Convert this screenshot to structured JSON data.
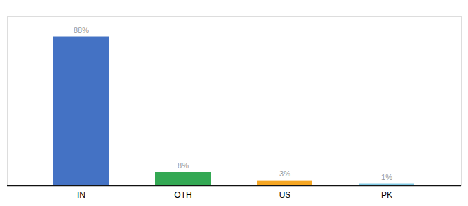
{
  "chart_data": {
    "type": "bar",
    "categories": [
      "IN",
      "OTH",
      "US",
      "PK"
    ],
    "values": [
      88,
      8,
      3,
      1
    ],
    "value_labels": [
      "88%",
      "8%",
      "3%",
      "1%"
    ],
    "colors": [
      "#4472c4",
      "#33a853",
      "#f5a623",
      "#7ec8e3"
    ],
    "ylim": [
      0,
      100
    ],
    "data_labels": true,
    "tick_labels": "x",
    "grid": false
  }
}
